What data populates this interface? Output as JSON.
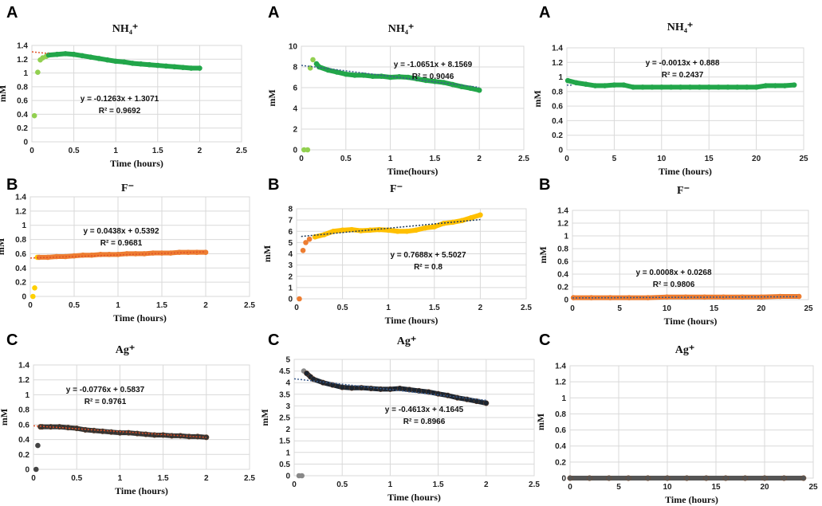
{
  "chart_data": [
    {
      "panel": "A",
      "type": "scatter",
      "title": "NH₄⁺",
      "xlabel": "Time (hours)",
      "ylabel": "mM",
      "xlim": [
        0,
        2.5
      ],
      "xstep": 0.5,
      "ylim": [
        0,
        1.4
      ],
      "ystep": 0.2,
      "grid": true,
      "equation": "y = -0.1263x + 1.3071",
      "r2": "R² = 0.9692",
      "trend": {
        "slope": -0.1263,
        "intercept": 1.3071,
        "color": "#e0522a",
        "from": 0,
        "to": 0.2
      },
      "early_color": "#92d050",
      "color": "#22a64a",
      "early_count": 5,
      "x": [
        0.03,
        0.07,
        0.1,
        0.13,
        0.17,
        0.2,
        0.3,
        0.4,
        0.5,
        0.6,
        0.7,
        0.8,
        0.9,
        1.0,
        1.1,
        1.2,
        1.3,
        1.4,
        1.5,
        1.6,
        1.7,
        1.8,
        1.9,
        2.0
      ],
      "y": [
        0.38,
        1.01,
        1.19,
        1.22,
        1.24,
        1.26,
        1.27,
        1.28,
        1.27,
        1.25,
        1.23,
        1.21,
        1.19,
        1.17,
        1.16,
        1.14,
        1.13,
        1.12,
        1.11,
        1.1,
        1.09,
        1.08,
        1.07,
        1.07
      ]
    },
    {
      "panel": "A",
      "type": "scatter",
      "title": "NH₄⁺",
      "xlabel": "Time(hours)",
      "ylabel": "mM",
      "xlim": [
        0,
        2.5
      ],
      "xstep": 0.5,
      "ylim": [
        0,
        10
      ],
      "ystep": 2,
      "grid": true,
      "equation": "y = -1.0651x + 8.1569",
      "r2": "R² = 0.9046",
      "trend": {
        "slope": -1.0651,
        "intercept": 8.1569,
        "color": "#3a5a8a",
        "from": 0,
        "to": 2
      },
      "early_color": "#92d050",
      "color": "#22a64a",
      "early_count": 4,
      "x": [
        0.03,
        0.07,
        0.1,
        0.13,
        0.17,
        0.2,
        0.3,
        0.4,
        0.5,
        0.6,
        0.7,
        0.8,
        0.9,
        1.0,
        1.1,
        1.2,
        1.3,
        1.4,
        1.5,
        1.6,
        1.7,
        1.8,
        1.9,
        2.0
      ],
      "y": [
        0,
        0,
        7.9,
        8.7,
        8.3,
        8.0,
        7.7,
        7.5,
        7.3,
        7.2,
        7.2,
        7.1,
        7.1,
        7.0,
        7.05,
        7.0,
        6.85,
        6.7,
        6.6,
        6.5,
        6.3,
        6.1,
        5.95,
        5.75
      ]
    },
    {
      "panel": "A",
      "type": "scatter",
      "title": "NH₄⁺",
      "xlabel": "Time (hours)",
      "ylabel": "mM",
      "xlim": [
        0,
        25
      ],
      "xstep": 5,
      "ylim": [
        0,
        1.4
      ],
      "ystep": 0.2,
      "grid": true,
      "equation": "y = -0.0013x + 0.888",
      "r2": "R² = 0.2437",
      "trend": {
        "slope": -0.0013,
        "intercept": 0.888,
        "color": "#3a5a8a",
        "from": 0,
        "to": 0.5
      },
      "early_color": "#22a64a",
      "color": "#22a64a",
      "early_count": 0,
      "x": [
        0.1,
        1,
        2,
        3,
        4,
        5,
        6,
        7,
        8,
        9,
        10,
        11,
        12,
        13,
        14,
        15,
        16,
        17,
        18,
        19,
        20,
        21,
        22,
        23,
        24
      ],
      "y": [
        0.95,
        0.92,
        0.9,
        0.88,
        0.88,
        0.89,
        0.89,
        0.86,
        0.86,
        0.86,
        0.86,
        0.86,
        0.86,
        0.86,
        0.86,
        0.86,
        0.86,
        0.86,
        0.86,
        0.86,
        0.86,
        0.88,
        0.88,
        0.88,
        0.89
      ]
    },
    {
      "panel": "B",
      "type": "scatter",
      "title": "F⁻",
      "xlabel": "Time (hours)",
      "ylabel": "mM",
      "xlim": [
        0,
        2.5
      ],
      "xstep": 0.5,
      "ylim": [
        0,
        1.4
      ],
      "ystep": 0.2,
      "grid": true,
      "equation": "y = 0.0438x + 0.5392",
      "r2": "R² = 0.9681",
      "trend": {
        "slope": 0.0438,
        "intercept": 0.5392,
        "color": "#e0522a",
        "from": 0,
        "to": 2
      },
      "early_color": "#ffd000",
      "color": "#ed7d31",
      "early_count": 3,
      "x": [
        0.03,
        0.05,
        0.08,
        0.1,
        0.2,
        0.3,
        0.4,
        0.5,
        0.6,
        0.7,
        0.8,
        0.9,
        1.0,
        1.1,
        1.2,
        1.3,
        1.4,
        1.5,
        1.6,
        1.7,
        1.8,
        1.9,
        2.0
      ],
      "y": [
        0,
        0.12,
        0.55,
        0.55,
        0.55,
        0.56,
        0.56,
        0.57,
        0.58,
        0.58,
        0.59,
        0.59,
        0.59,
        0.6,
        0.6,
        0.6,
        0.61,
        0.61,
        0.61,
        0.62,
        0.62,
        0.62,
        0.62
      ]
    },
    {
      "panel": "B",
      "type": "scatter",
      "title": "F⁻",
      "xlabel": "Time (hours)",
      "ylabel": "mM",
      "xlim": [
        0,
        2.5
      ],
      "xstep": 0.5,
      "ylim": [
        0,
        8
      ],
      "ystep": 1,
      "grid": true,
      "equation": "y = 0.7688x + 5.5027",
      "r2": "R² = 0.8",
      "trend": {
        "slope": 0.7688,
        "intercept": 5.5027,
        "color": "#1f3b5a",
        "from": 0.05,
        "to": 2
      },
      "early_color": "#ed7d31",
      "color": "#ffc000",
      "early_count": 4,
      "x": [
        0.03,
        0.07,
        0.1,
        0.14,
        0.2,
        0.3,
        0.4,
        0.5,
        0.6,
        0.7,
        0.8,
        0.9,
        1.0,
        1.1,
        1.2,
        1.3,
        1.4,
        1.5,
        1.6,
        1.7,
        1.8,
        1.9,
        2.0
      ],
      "y": [
        0,
        4.3,
        5.0,
        5.3,
        5.5,
        5.7,
        6.0,
        6.1,
        6.15,
        6.05,
        6.1,
        6.15,
        6.1,
        6.0,
        6.0,
        6.1,
        6.3,
        6.4,
        6.7,
        6.8,
        6.95,
        7.2,
        7.45
      ]
    },
    {
      "panel": "B",
      "type": "scatter",
      "title": "F⁻",
      "xlabel": "Time (hours)",
      "ylabel": "mM",
      "xlim": [
        0,
        25
      ],
      "xstep": 5,
      "ylim": [
        0,
        1.4
      ],
      "ystep": 0.2,
      "grid": true,
      "equation": "y = 0.0008x + 0.0268",
      "r2": "R² = 0.9806",
      "trend": {
        "slope": 0.0008,
        "intercept": 0.0268,
        "color": "#3a5a8a",
        "from": 0,
        "to": 24
      },
      "early_color": "#ed7d31",
      "color": "#ed7d31",
      "early_count": 0,
      "x": [
        0.1,
        2,
        4,
        6,
        8,
        10,
        12,
        14,
        16,
        18,
        20,
        22,
        24
      ],
      "y": [
        0.03,
        0.03,
        0.03,
        0.03,
        0.03,
        0.04,
        0.04,
        0.04,
        0.04,
        0.04,
        0.04,
        0.05,
        0.05
      ]
    },
    {
      "panel": "C",
      "type": "scatter",
      "title": "Ag⁺",
      "xlabel": "Time (hours)",
      "ylabel": "mM",
      "xlim": [
        0,
        2.5
      ],
      "xstep": 0.5,
      "ylim": [
        0,
        1.4
      ],
      "ystep": 0.2,
      "grid": true,
      "equation": "y = -0.0776x + 0.5837",
      "r2": "R² = 0.9761",
      "trend": {
        "slope": -0.0776,
        "intercept": 0.5837,
        "color": "#e0522a",
        "from": 0,
        "to": 2
      },
      "early_color": "#444444",
      "color": "#333333",
      "early_count": 2,
      "x": [
        0.03,
        0.05,
        0.08,
        0.1,
        0.2,
        0.3,
        0.4,
        0.5,
        0.6,
        0.7,
        0.8,
        0.9,
        1.0,
        1.1,
        1.2,
        1.3,
        1.4,
        1.5,
        1.6,
        1.7,
        1.8,
        1.9,
        2.0
      ],
      "y": [
        0,
        0.32,
        0.57,
        0.57,
        0.57,
        0.57,
        0.56,
        0.55,
        0.53,
        0.52,
        0.51,
        0.5,
        0.49,
        0.49,
        0.48,
        0.47,
        0.46,
        0.46,
        0.45,
        0.45,
        0.44,
        0.44,
        0.43
      ]
    },
    {
      "panel": "C",
      "type": "scatter",
      "title": "Ag⁺",
      "xlabel": "Time (hours)",
      "ylabel": "mM",
      "xlim": [
        0,
        2.5
      ],
      "xstep": 0.5,
      "ylim": [
        0,
        5
      ],
      "ystep": 0.5,
      "grid": true,
      "equation": "y = -0.4613x + 4.1645",
      "r2": "R² = 0.8966",
      "trend": {
        "slope": -0.4613,
        "intercept": 4.1645,
        "color": "#3a5a8a",
        "from": 0,
        "to": 2
      },
      "early_color": "#888888",
      "color": "#1c2530",
      "early_count": 3,
      "x": [
        0.05,
        0.08,
        0.1,
        0.13,
        0.17,
        0.2,
        0.3,
        0.4,
        0.5,
        0.6,
        0.7,
        0.8,
        0.9,
        1.0,
        1.1,
        1.2,
        1.3,
        1.4,
        1.5,
        1.6,
        1.7,
        1.8,
        1.9,
        2.0
      ],
      "y": [
        0,
        0,
        4.5,
        4.4,
        4.25,
        4.15,
        4.0,
        3.9,
        3.8,
        3.77,
        3.78,
        3.75,
        3.72,
        3.72,
        3.75,
        3.7,
        3.65,
        3.6,
        3.52,
        3.45,
        3.35,
        3.28,
        3.2,
        3.12
      ]
    },
    {
      "panel": "C",
      "type": "scatter",
      "title": "Ag⁺",
      "xlabel": "Time (hours)",
      "ylabel": "mM",
      "xlim": [
        0,
        25
      ],
      "xstep": 5,
      "ylim": [
        0,
        1.4
      ],
      "ystep": 0.2,
      "grid": true,
      "equation": "",
      "r2": "",
      "trend": null,
      "early_color": "#555555",
      "color": "#555555",
      "early_count": 0,
      "x": [
        0,
        2,
        4,
        6,
        8,
        10,
        12,
        14,
        16,
        18,
        20,
        22,
        24
      ],
      "y": [
        0,
        0,
        0,
        0,
        0,
        0,
        0,
        0,
        0,
        0,
        0,
        0,
        0
      ]
    }
  ]
}
